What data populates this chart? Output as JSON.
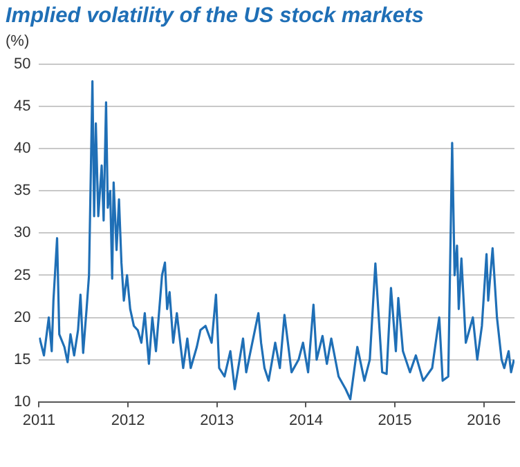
{
  "chart_data": {
    "type": "line",
    "title": "Implied volatility of the US stock markets",
    "ylabel": "(%)",
    "x": [
      "2011-01-03",
      "2011-01-21",
      "2011-02-10",
      "2011-02-22",
      "2011-03-01",
      "2011-03-16",
      "2011-03-25",
      "2011-04-15",
      "2011-04-28",
      "2011-05-10",
      "2011-05-25",
      "2011-06-10",
      "2011-06-20",
      "2011-07-01",
      "2011-07-15",
      "2011-07-25",
      "2011-08-08",
      "2011-08-15",
      "2011-08-22",
      "2011-09-01",
      "2011-09-15",
      "2011-09-23",
      "2011-10-03",
      "2011-10-10",
      "2011-10-20",
      "2011-10-28",
      "2011-11-03",
      "2011-11-15",
      "2011-11-25",
      "2011-12-05",
      "2011-12-15",
      "2011-12-28",
      "2012-01-10",
      "2012-01-25",
      "2012-02-10",
      "2012-02-25",
      "2012-03-10",
      "2012-03-27",
      "2012-04-10",
      "2012-04-25",
      "2012-05-20",
      "2012-06-01",
      "2012-06-10",
      "2012-06-20",
      "2012-07-05",
      "2012-07-20",
      "2012-08-15",
      "2012-09-01",
      "2012-09-15",
      "2012-10-10",
      "2012-10-25",
      "2012-11-15",
      "2012-12-10",
      "2012-12-28",
      "2013-01-10",
      "2013-02-01",
      "2013-02-25",
      "2013-03-15",
      "2013-04-18",
      "2013-05-01",
      "2013-06-20",
      "2013-07-01",
      "2013-07-15",
      "2013-08-01",
      "2013-08-28",
      "2013-09-16",
      "2013-10-05",
      "2013-11-03",
      "2013-12-02",
      "2013-12-20",
      "2014-01-10",
      "2014-02-01",
      "2014-02-14",
      "2014-03-10",
      "2014-03-28",
      "2014-04-15",
      "2014-05-15",
      "2014-06-13",
      "2014-07-02",
      "2014-07-31",
      "2014-08-29",
      "2014-09-20",
      "2014-10-13",
      "2014-11-10",
      "2014-11-28",
      "2014-12-16",
      "2015-01-05",
      "2015-01-15",
      "2015-02-03",
      "2015-03-04",
      "2015-03-28",
      "2015-04-27",
      "2015-06-03",
      "2015-07-02",
      "2015-07-16",
      "2015-08-08",
      "2015-08-24",
      "2015-09-03",
      "2015-09-13",
      "2015-09-20",
      "2015-10-01",
      "2015-10-19",
      "2015-11-17",
      "2015-12-05",
      "2015-12-24",
      "2016-01-12",
      "2016-01-19",
      "2016-02-06",
      "2016-02-24",
      "2016-03-14",
      "2016-03-25",
      "2016-04-12",
      "2016-04-22",
      "2016-05-04"
    ],
    "series": [
      {
        "color": "#1f6fb6",
        "values": [
          17.6,
          15.5,
          20,
          16,
          22,
          29.4,
          18,
          16.5,
          14.7,
          18,
          15.5,
          18.5,
          22.7,
          15.8,
          21,
          25,
          48,
          32,
          43,
          32,
          38,
          31.5,
          45.5,
          33,
          35,
          24.6,
          36,
          28,
          34,
          26.5,
          22,
          25,
          21,
          19,
          18.5,
          17,
          20.5,
          14.5,
          20,
          16,
          25,
          26.5,
          21,
          23,
          17,
          20.5,
          14,
          17.5,
          14,
          16.5,
          18.5,
          19,
          17,
          22.7,
          14,
          13,
          16,
          11.5,
          17.5,
          13.5,
          20.5,
          17,
          14,
          12.5,
          17,
          14,
          20.3,
          13.5,
          15,
          17,
          13.5,
          21.5,
          15,
          17.8,
          14.5,
          17.5,
          13,
          11.5,
          10.3,
          16.5,
          12.5,
          15,
          26.4,
          13.5,
          13.3,
          23.5,
          16,
          22.3,
          16,
          13.5,
          15.5,
          12.5,
          14,
          20,
          12.5,
          13,
          40.7,
          25,
          28.5,
          21,
          27,
          17,
          20,
          15,
          19,
          27.5,
          22,
          28.2,
          20,
          15,
          14,
          16,
          13.5,
          15
        ]
      }
    ],
    "xlim": [
      "2011-01-01",
      "2016-05-06"
    ],
    "xticks": [
      "2011",
      "2012",
      "2013",
      "2014",
      "2015",
      "2016"
    ],
    "ylim": [
      10,
      50
    ],
    "yticks": [
      10,
      15,
      20,
      25,
      30,
      35,
      40,
      45,
      50
    ],
    "grid": "y",
    "legend": false,
    "marker": "none",
    "line_style": "solid"
  }
}
